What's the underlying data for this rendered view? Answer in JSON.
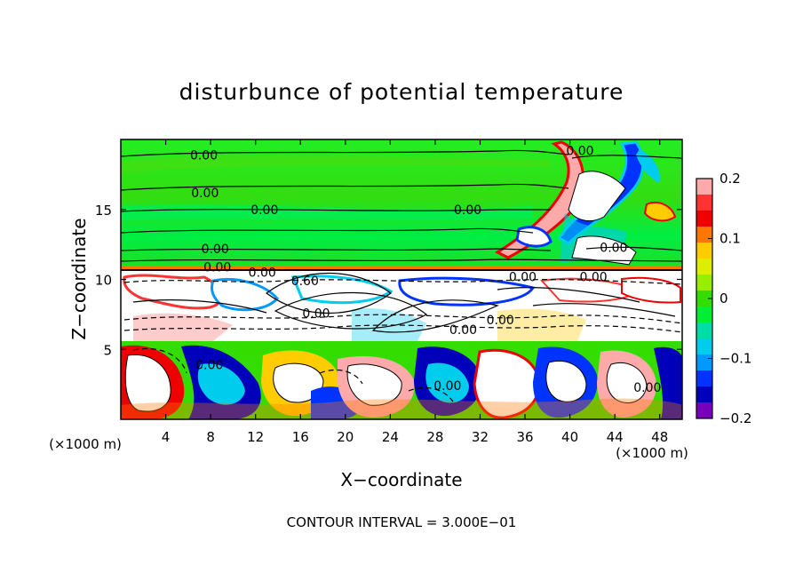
{
  "chart_data": {
    "type": "heatmap",
    "title": "disturbunce of potential temperature",
    "xlabel": "X−coordinate",
    "ylabel": "Z−coordinate",
    "x_unit": "(×1000 m)",
    "y_unit": "(×1000 m)",
    "xlim": [
      0,
      50
    ],
    "ylim": [
      0,
      20
    ],
    "x_ticks": [
      4,
      8,
      12,
      16,
      20,
      24,
      28,
      32,
      36,
      40,
      44,
      48
    ],
    "y_ticks": [
      5,
      10,
      15
    ],
    "colorbar": {
      "min": -0.2,
      "max": 0.2,
      "ticks": [
        0.2,
        0.1,
        0,
        -0.1,
        -0.2
      ],
      "tick_labels": [
        "0.2",
        "0.1",
        "0",
        "−0.1",
        "−0.2"
      ],
      "colors": [
        "#ffaaaa",
        "#ff3333",
        "#ee0000",
        "#ff7700",
        "#ffcc00",
        "#ddee00",
        "#99ee00",
        "#33dd00",
        "#00ee33",
        "#00ddaa",
        "#00ccee",
        "#0099ff",
        "#0033ff",
        "#0000bb",
        "#7700bb"
      ]
    },
    "contour_labels": [
      {
        "text": "0.00",
        "x": 7.4,
        "z": 18.9
      },
      {
        "text": "0.00",
        "x": 7.5,
        "z": 16.2
      },
      {
        "text": "0.00",
        "x": 12.8,
        "z": 15.0
      },
      {
        "text": "0.00",
        "x": 30.9,
        "z": 15.0
      },
      {
        "text": "0.00",
        "x": 40.9,
        "z": 19.2
      },
      {
        "text": "0.00",
        "x": 8.4,
        "z": 12.2
      },
      {
        "text": "0.00",
        "x": 8.6,
        "z": 10.9
      },
      {
        "text": "0.00",
        "x": 12.6,
        "z": 10.5
      },
      {
        "text": "0.60",
        "x": 16.4,
        "z": 9.9
      },
      {
        "text": "0.00",
        "x": 17.4,
        "z": 7.6
      },
      {
        "text": "0.00",
        "x": 30.5,
        "z": 6.4
      },
      {
        "text": "0.00",
        "x": 33.8,
        "z": 7.1
      },
      {
        "text": "0.00",
        "x": 35.8,
        "z": 10.2
      },
      {
        "text": "0.00",
        "x": 42.1,
        "z": 10.2
      },
      {
        "text": "0.00",
        "x": 43.9,
        "z": 12.3
      },
      {
        "text": "0.00",
        "x": 7.9,
        "z": 3.9
      },
      {
        "text": "0.00",
        "x": 29.1,
        "z": 2.4
      },
      {
        "text": "0.00",
        "x": 46.9,
        "z": 2.3
      }
    ],
    "contour_interval_text": "CONTOUR INTERVAL = 3.000E−01"
  }
}
